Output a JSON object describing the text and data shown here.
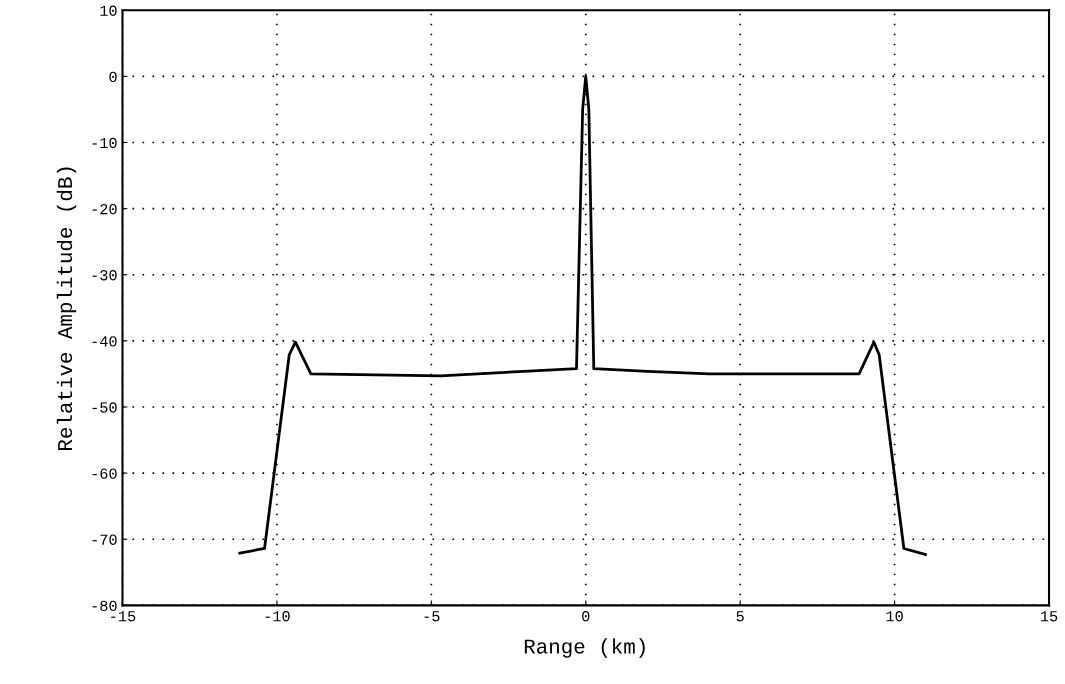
{
  "chart_data": {
    "type": "line",
    "xlabel": "Range (km)",
    "ylabel": "Relative Amplitude (dB)",
    "xlim": [
      -15,
      15
    ],
    "xticks": [
      -15,
      -10,
      -5,
      0,
      5,
      10,
      15
    ],
    "ylim": [
      -80,
      10
    ],
    "yticks": [
      -80,
      -70,
      -60,
      -50,
      -40,
      -30,
      -20,
      -10,
      0,
      10
    ],
    "grid": true,
    "line_style": "solid",
    "marker": "none",
    "series": [
      {
        "color": "#000000",
        "x": [
          -11.2,
          -10.4,
          -9.6,
          -9.4,
          -8.9,
          -4.7,
          -2,
          -0.3,
          -0.1,
          0,
          0.1,
          0.26,
          2,
          4,
          8.85,
          9.33,
          9.5,
          10.3,
          11.0
        ],
        "values": [
          -72.1,
          -71.4,
          -42.1,
          -40.2,
          -45.0,
          -45.3,
          -44.6,
          -44.2,
          -5,
          0,
          -5,
          -44.2,
          -44.6,
          -45.0,
          -45.0,
          -40.2,
          -42.1,
          -71.4,
          -72.3
        ]
      }
    ]
  }
}
